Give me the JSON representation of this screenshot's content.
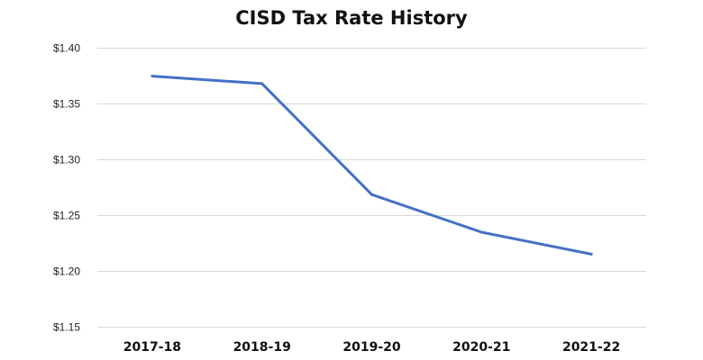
{
  "chart_data": {
    "type": "line",
    "title": "CISD Tax Rate History",
    "xlabel": "",
    "ylabel": "",
    "categories": [
      "2017-18",
      "2018-19",
      "2019-20",
      "2020-21",
      "2021-22"
    ],
    "series": [
      {
        "values": [
          1.3745,
          1.3678,
          1.2684,
          1.2347,
          1.215
        ],
        "color": "#4472C4"
      }
    ],
    "ylim": [
      1.15,
      1.4
    ],
    "yticks": [
      1.15,
      1.2,
      1.25,
      1.3,
      1.35,
      1.4
    ],
    "ytick_labels": [
      "$1.15",
      "$1.20",
      "$1.25",
      "$1.30",
      "$1.35",
      "$1.40"
    ],
    "grid": true,
    "legend": "none",
    "colors": {
      "line": "#4472C4",
      "grid": "#d9d9d9"
    }
  }
}
